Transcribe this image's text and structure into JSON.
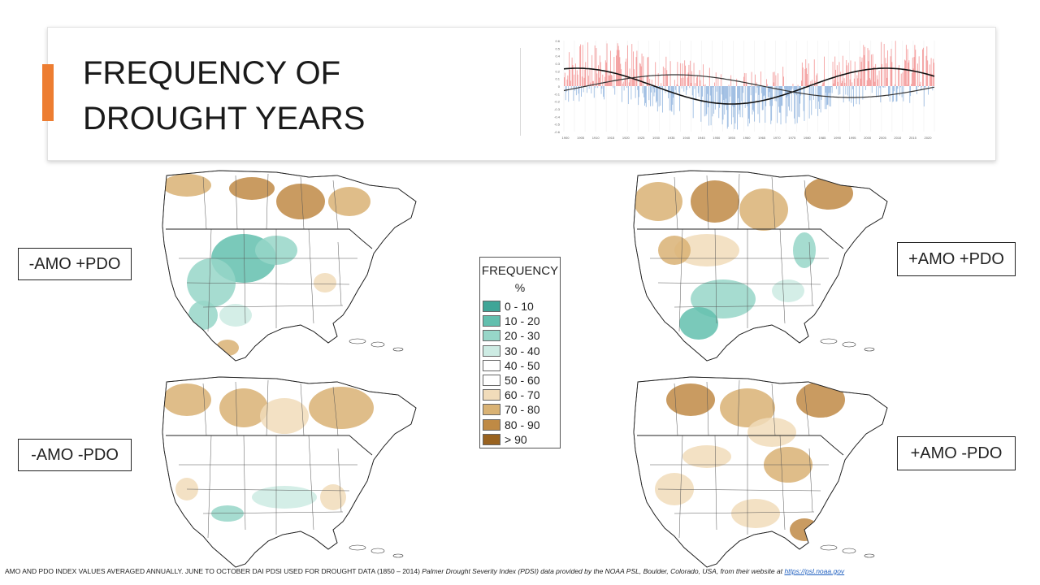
{
  "slide": {
    "title_line1": "FREQUENCY OF",
    "title_line2": "DROUGHT YEARS",
    "accent_color": "#ed7d31"
  },
  "index_chart": {
    "y_ticks": [
      "0.6",
      "0.5",
      "0.4",
      "0.3",
      "0.2",
      "0.1",
      "0",
      "-0.1",
      "-0.2",
      "-0.3",
      "-0.4",
      "-0.5",
      "-0.6"
    ],
    "x_ticks": [
      "1900",
      "1905",
      "1910",
      "1915",
      "1920",
      "1925",
      "1930",
      "1935",
      "1940",
      "1945",
      "1950",
      "1955",
      "1960",
      "1965",
      "1970",
      "1975",
      "1980",
      "1985",
      "1990",
      "1995",
      "2000",
      "2005",
      "2010",
      "2015",
      "2020"
    ],
    "positive_color": "#f08080",
    "negative_color": "#7ea7d8"
  },
  "maps": {
    "top_left_label": "-AMO +PDO",
    "top_right_label": "+AMO +PDO",
    "bottom_left_label": "-AMO -PDO",
    "bottom_right_label": "+AMO -PDO"
  },
  "legend": {
    "title": "FREQUENCY",
    "unit": "%",
    "classes": [
      {
        "label": "0 - 10",
        "color": "#3fa597"
      },
      {
        "label": "10 - 20",
        "color": "#63bfae"
      },
      {
        "label": "20 - 30",
        "color": "#97d6c8"
      },
      {
        "label": "30 - 40",
        "color": "#cdebe3"
      },
      {
        "label": "40 - 50",
        "color": "#ffffff"
      },
      {
        "label": "50 - 60",
        "color": "#ffffff"
      },
      {
        "label": "60 - 70",
        "color": "#f1dcba"
      },
      {
        "label": "70 - 80",
        "color": "#d9b274"
      },
      {
        "label": "80 - 90",
        "color": "#bf8a45"
      },
      {
        "label": "> 90",
        "color": "#99621f"
      }
    ]
  },
  "footnote": {
    "plain": "AMO AND PDO INDEX VALUES AVERAGED ANNUALLY. JUNE TO OCTOBER DAI PDSI USED FOR DROUGHT DATA (1850 – 2014) ",
    "italic": "Palmer Drought Severity Index (PDSI) data provided by the NOAA PSL, Boulder, Colorado, USA, from their website at ",
    "link": "https://psl.noaa.gov"
  }
}
